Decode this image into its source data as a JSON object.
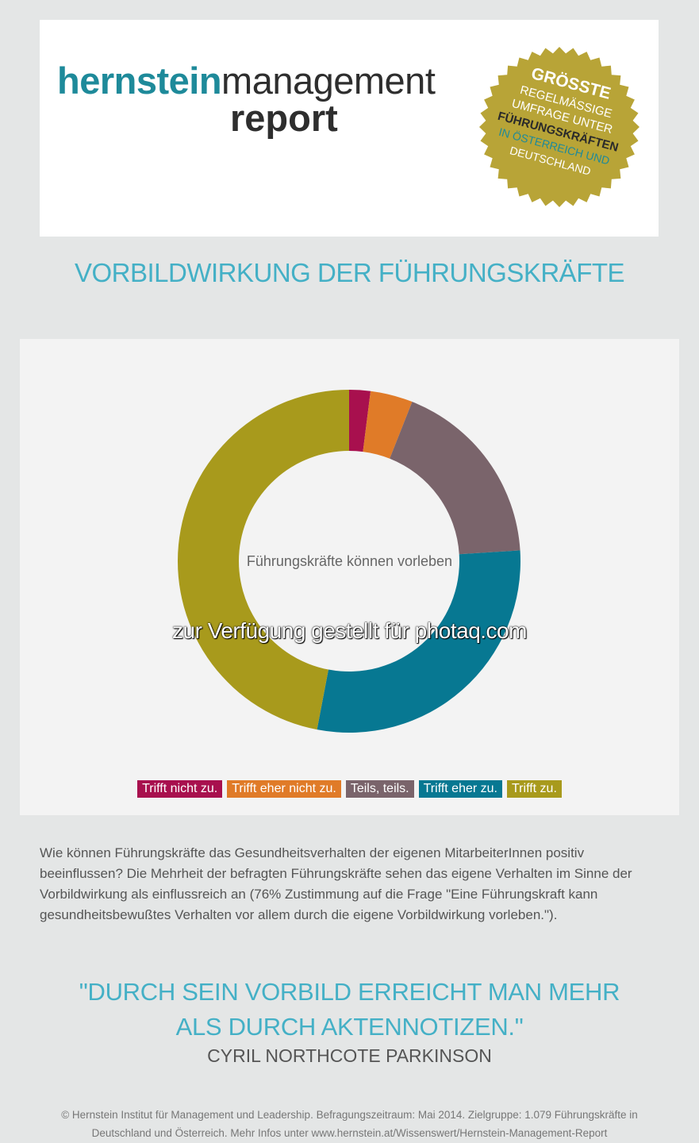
{
  "header": {
    "logo_brand": "hernstein",
    "logo_management": "management",
    "logo_report": "report",
    "seal_lines": [
      "GRÖSSTE",
      "REGELMÄSSIGE",
      "UMFRAGE UNTER",
      "FÜHRUNGSKRÄFTEN",
      "IN ÖSTERREICH UND",
      "DEUTSCHLAND"
    ],
    "seal_color": "#b8a437"
  },
  "section_title": "VORBILDWIRKUNG DER FÜHRUNGSKRÄFTE",
  "chart_data": {
    "type": "pie",
    "donut": true,
    "center_label": "Führungskräfte können vorleben",
    "categories": [
      "Trifft nicht zu.",
      "Trifft eher nicht zu.",
      "Teils, teils.",
      "Trifft eher zu.",
      "Trifft zu."
    ],
    "values": [
      2,
      4,
      18,
      29,
      47
    ],
    "colors": [
      "#a8104e",
      "#e07b28",
      "#7a646b",
      "#077892",
      "#a89a1c"
    ],
    "legend_position": "bottom"
  },
  "body_text": "Wie können Führungskräfte das Gesundheitsverhalten der eigenen MitarbeiterInnen positiv beeinflussen? Die Mehrheit der befragten Führungskräfte sehen das eigene Verhalten im Sinne der Vorbildwirkung als einflussreich an (76% Zustimmung auf die Frage \"Eine Führungskraft kann gesundheitsbewußtes Verhalten vor allem durch die eigene Vorbildwirkung vorleben.\").",
  "quote": {
    "line1": "\"DURCH SEIN VORBILD ERREICHT MAN MEHR",
    "line2": "ALS DURCH AKTENNOTIZEN.\"",
    "author": "CYRIL NORTHCOTE PARKINSON"
  },
  "footer": {
    "line1": "© Hernstein Institut für Management und Leadership. Befragungszeitraum: Mai 2014. Zielgruppe: 1.079 Führungskräfte in",
    "line2": "Deutschland und Österreich. Mehr Infos unter www.hernstein.at/Wissenswert/Hernstein-Management-Report"
  },
  "watermark": "zur Verfügung gestellt für photaq.com"
}
